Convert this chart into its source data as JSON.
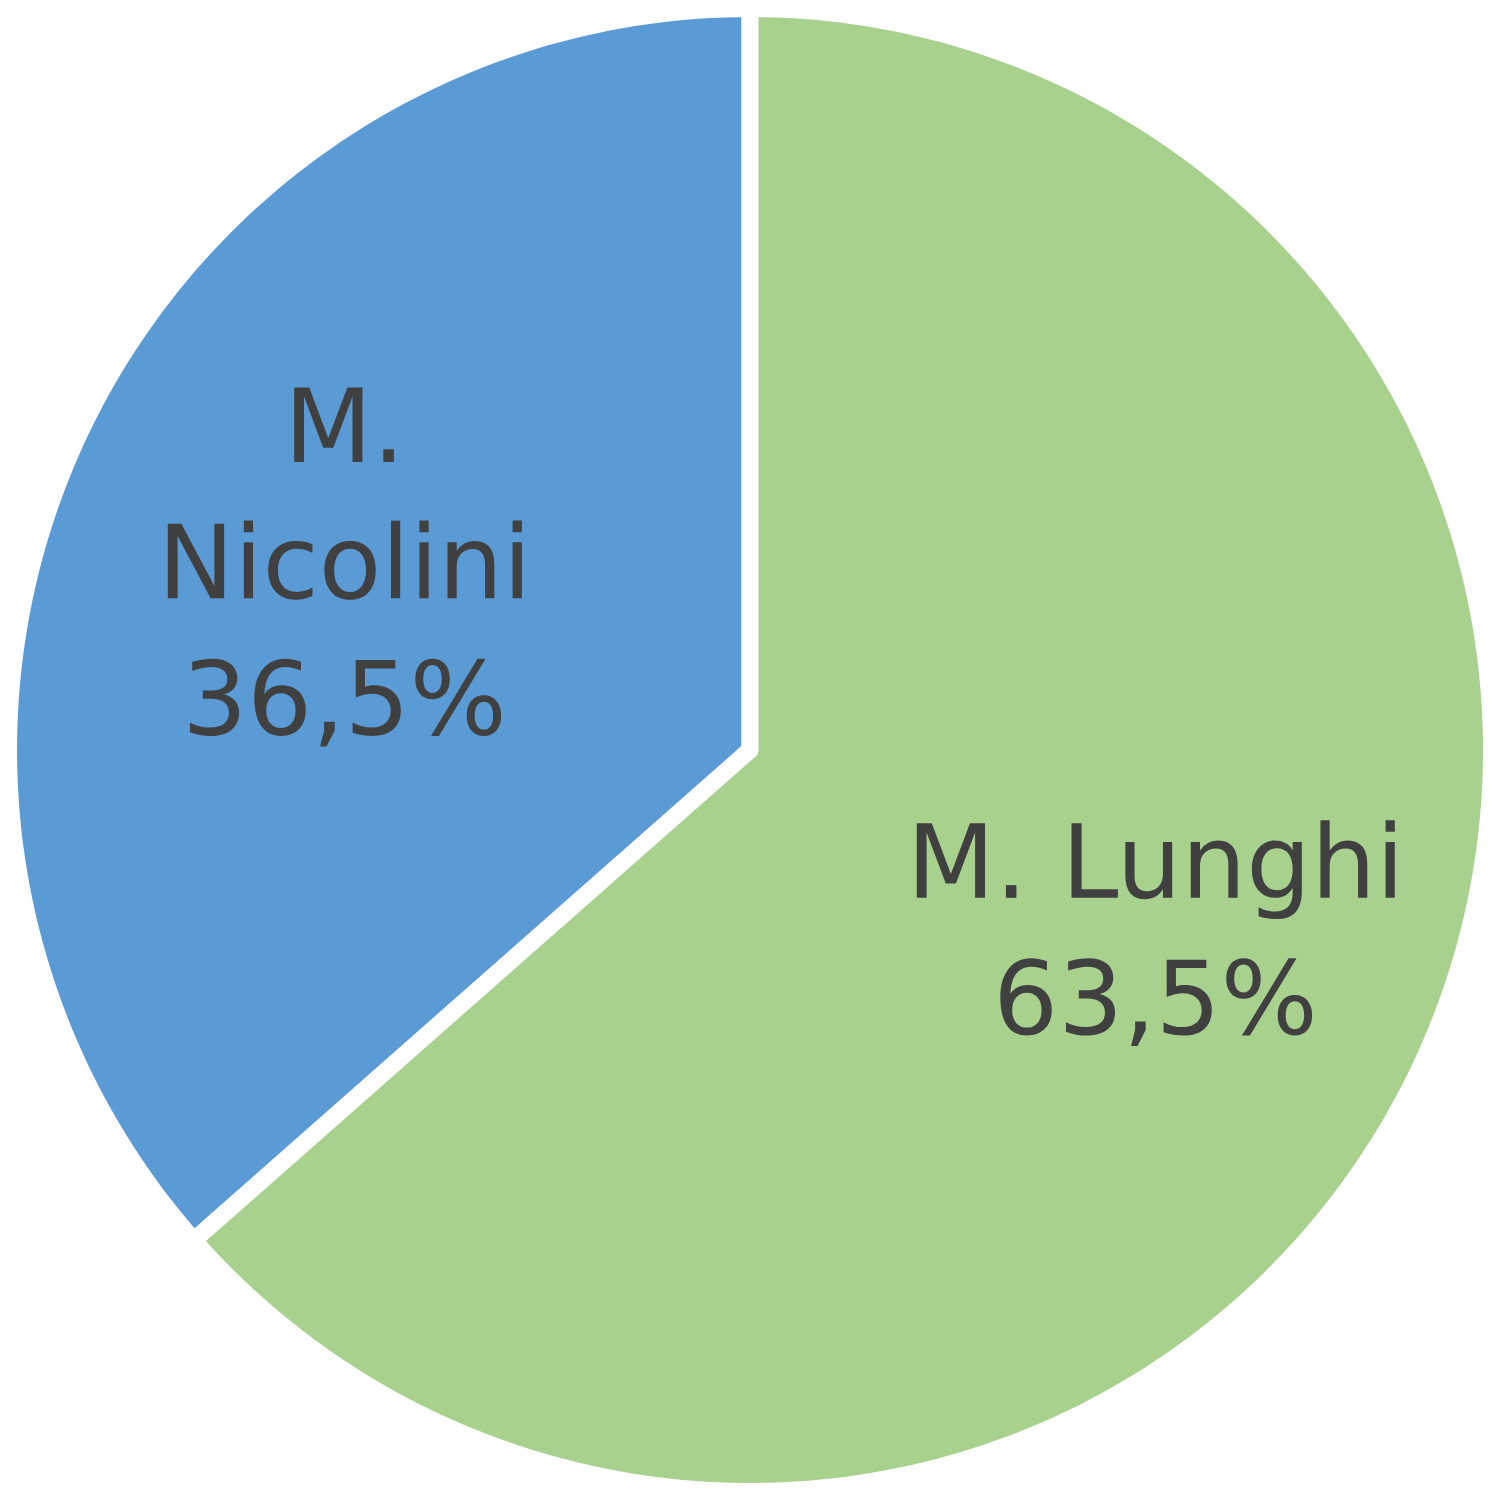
{
  "chart_data": {
    "type": "pie",
    "categories": [
      "M. Nicolini",
      "M. Lunghi"
    ],
    "values": [
      36.5,
      63.5
    ],
    "colors": [
      "#5b9bd5",
      "#a9d18e"
    ],
    "value_labels": [
      "36,5%",
      "63,5%"
    ]
  }
}
